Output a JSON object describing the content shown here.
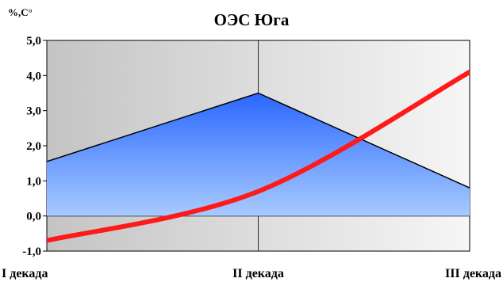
{
  "chart_data": {
    "type": "area",
    "title": "ОЭС Юга",
    "ylabel": "%,С°",
    "xlabel": "",
    "categories": [
      "I декада",
      "II декада",
      "III декада"
    ],
    "ylim": [
      -1.0,
      5.0
    ],
    "yticks": [
      "-1,0",
      "0,0",
      "1,0",
      "2,0",
      "3,0",
      "4,0",
      "5,0"
    ],
    "grid": true,
    "series": [
      {
        "type": "area",
        "values": [
          1.55,
          3.5,
          0.8
        ],
        "color": "#2f6bff"
      },
      {
        "type": "line",
        "values": [
          -0.7,
          0.7,
          4.1
        ],
        "color": "#ff1a1a"
      }
    ]
  }
}
